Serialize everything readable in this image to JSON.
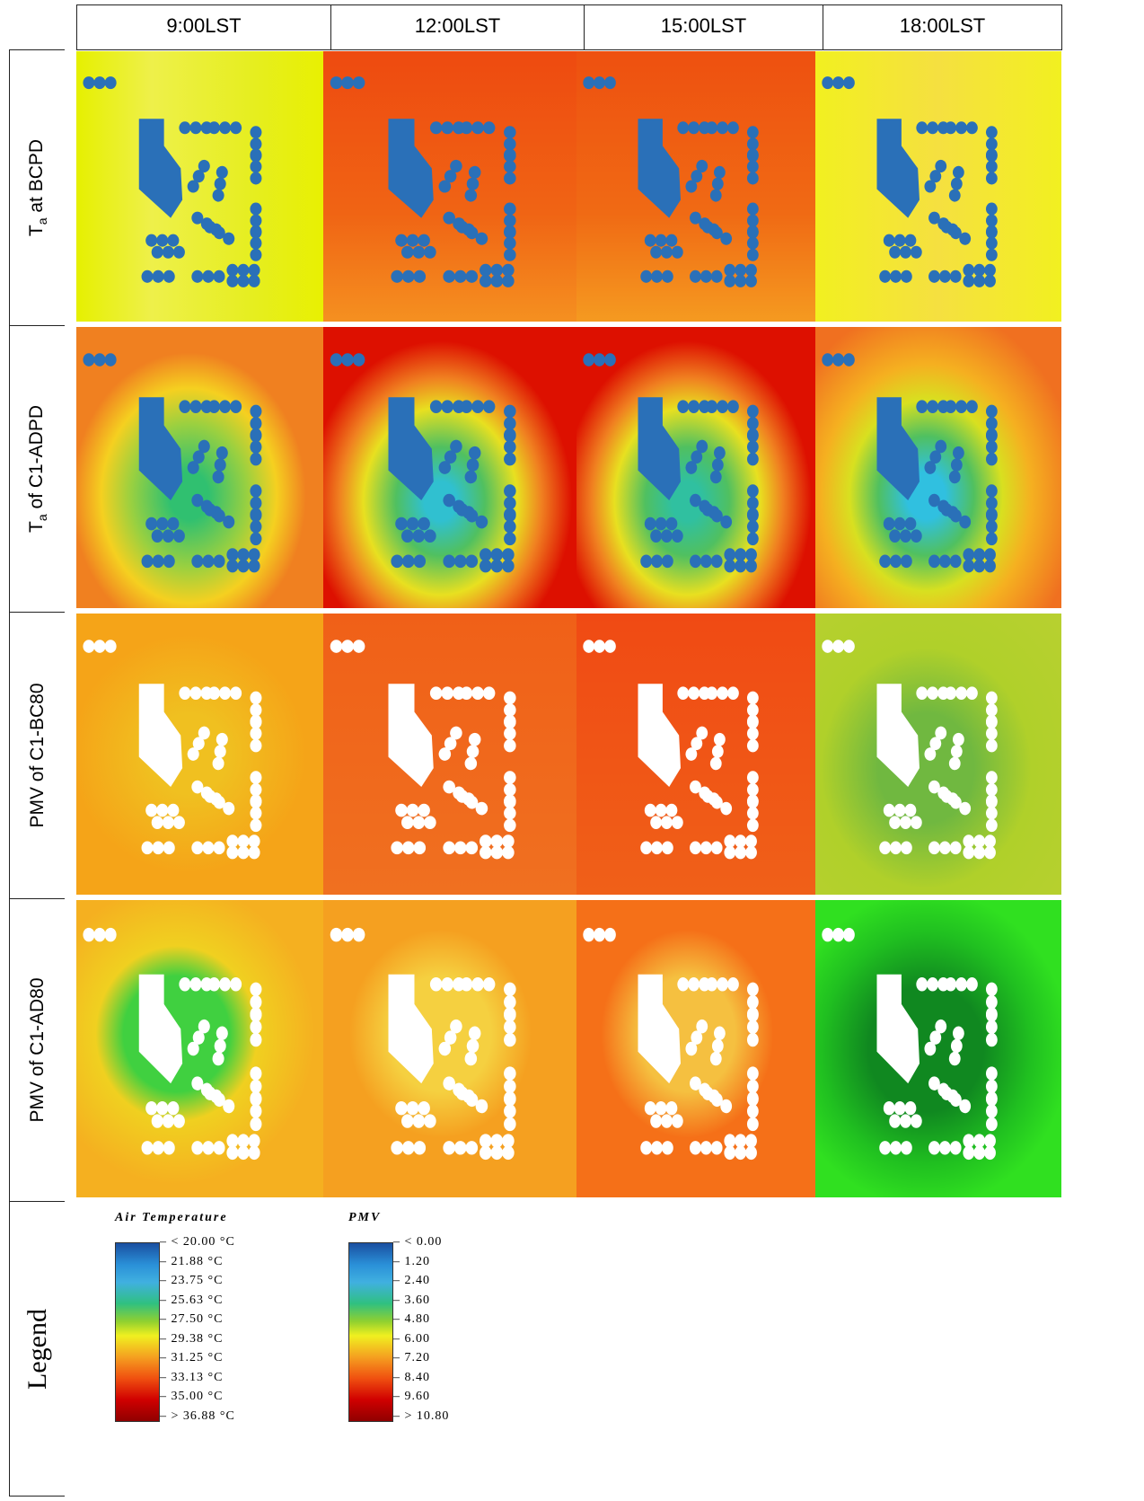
{
  "header": {
    "columns": [
      "9:00LST",
      "12:00LST",
      "15:00LST",
      "18:00LST"
    ]
  },
  "rows": [
    {
      "symbol": "T",
      "subscript": "a",
      "label": "at BCPD"
    },
    {
      "symbol": "T",
      "subscript": "a",
      "label": "of C1-ADPD"
    },
    {
      "label": "PMV of C1-BC80"
    },
    {
      "label": "PMV of C1-AD80"
    }
  ],
  "legend": {
    "row_label": "Legend",
    "air_temperature": {
      "title": "Air Temperature",
      "labels": [
        "< 20.00 °C",
        "21.88 °C",
        "23.75 °C",
        "25.63 °C",
        "27.50 °C",
        "29.38 °C",
        "31.25 °C",
        "33.13 °C",
        "35.00 °C",
        "> 36.88 °C"
      ]
    },
    "pmv": {
      "title": "PMV",
      "labels": [
        "< 0.00",
        "1.20",
        "2.40",
        "3.60",
        "4.80",
        "6.00",
        "7.20",
        "8.40",
        "9.60",
        "> 10.80"
      ]
    }
  }
}
